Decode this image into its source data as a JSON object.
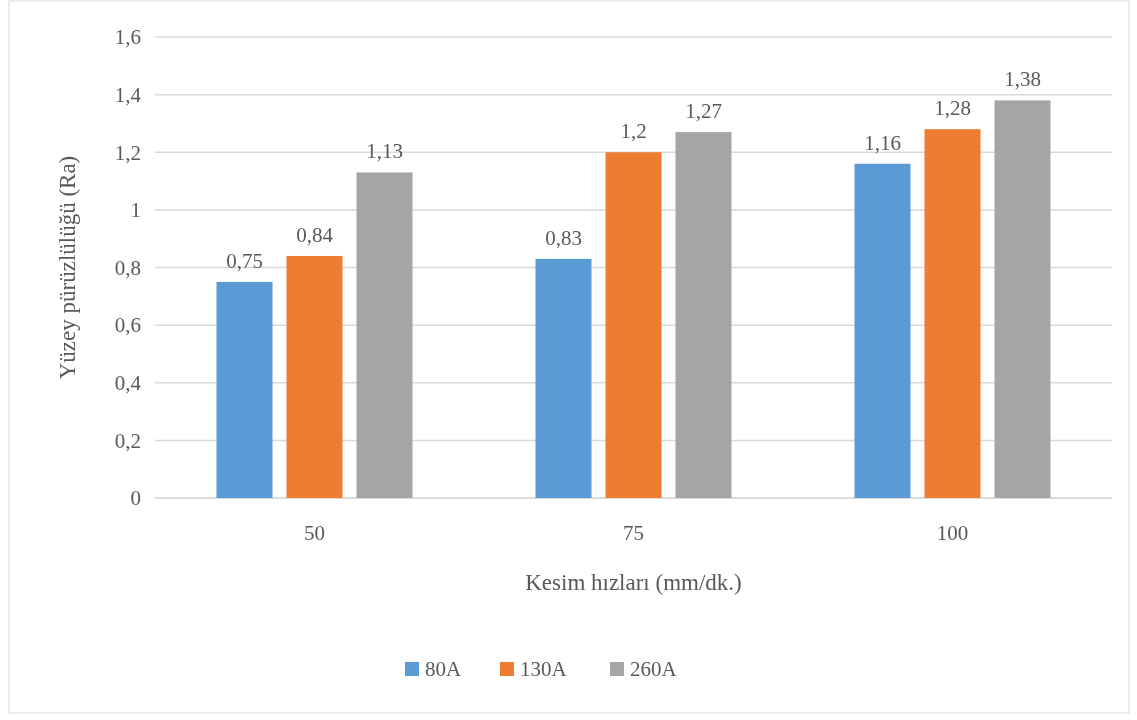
{
  "chart_data": {
    "type": "bar",
    "xlabel": "Kesim hızları (mm/dk.)",
    "ylabel": "Yüzey pürüzlülüğü (Ra)",
    "categories": [
      "50",
      "75",
      "100"
    ],
    "series": [
      {
        "name": "80A",
        "color": "#5b9bd5",
        "values": [
          0.75,
          0.83,
          1.16
        ],
        "value_labels": [
          "0,75",
          "0,83",
          "1,16"
        ]
      },
      {
        "name": "130A",
        "color": "#ed7d31",
        "values": [
          0.84,
          1.2,
          1.28
        ],
        "value_labels": [
          "0,84",
          "1,2",
          "1,28"
        ]
      },
      {
        "name": "260A",
        "color": "#a5a5a5",
        "values": [
          1.13,
          1.27,
          1.38
        ],
        "value_labels": [
          "1,13",
          "1,27",
          "1,38"
        ]
      }
    ],
    "ylim": [
      0,
      1.6
    ],
    "yticks": [
      0,
      {
        "value": 0.2,
        "label": "0,2"
      },
      {
        "value": 0.4,
        "label": "0,4"
      },
      {
        "value": 0.6,
        "label": "0,6"
      },
      {
        "value": 0.8,
        "label": "0,8"
      },
      1,
      {
        "value": 1.2,
        "label": "1,2"
      },
      {
        "value": 1.4,
        "label": "1,4"
      },
      {
        "value": 1.6,
        "label": "1,6"
      }
    ],
    "grid": "y",
    "legend": "bottom"
  }
}
